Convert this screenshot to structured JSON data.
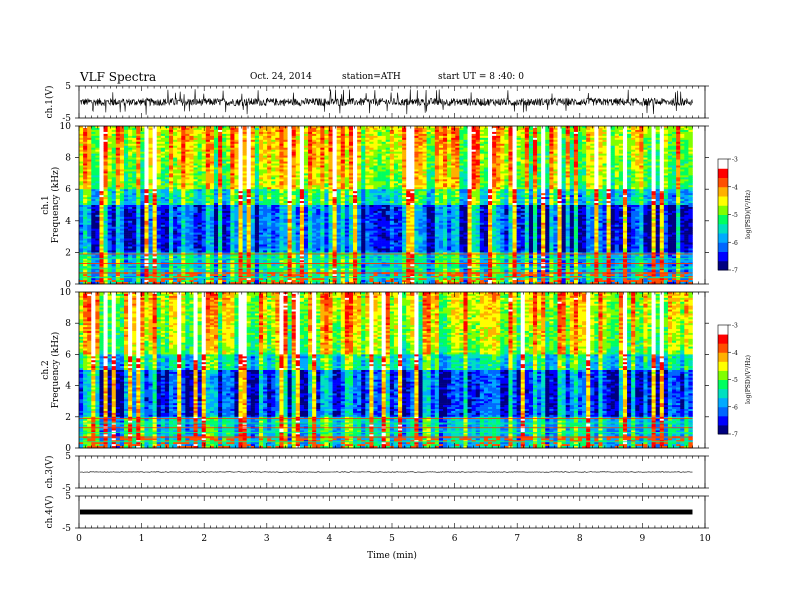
{
  "header": {
    "title": "VLF Spectra",
    "date": "Oct. 24, 2014",
    "station": "station=ATH",
    "start": "start UT = 8 :40: 0"
  },
  "chart_data": [
    {
      "type": "line",
      "panel": "ch1-waveform",
      "ylabel": "ch.1(V)",
      "ylim": [
        -5,
        5
      ],
      "yticks": [
        "5",
        "-5"
      ],
      "xlim": [
        0,
        10
      ],
      "x_end": 9.8,
      "baseline": 0,
      "amplitude_typical": 1.2,
      "amplitude_peak": 4.0,
      "color": "#000000"
    },
    {
      "type": "heatmap",
      "panel": "ch1-spectrogram",
      "ylabel": "ch.1\nFrequency (kHz)",
      "ylabel_line1": "ch.1",
      "ylabel_line2": "Frequency (kHz)",
      "ylim": [
        0,
        10
      ],
      "yticks": [
        "0",
        "2",
        "4",
        "6",
        "8",
        "10"
      ],
      "xlim": [
        0,
        10
      ],
      "x_end": 9.8,
      "colorbar": {
        "label": "log(PSD)(V²/Hz)",
        "range": [
          -7,
          -3
        ],
        "ticks": [
          "-3",
          "-4",
          "-5",
          "-6",
          "-7"
        ],
        "colors": [
          "#000080",
          "#0000ff",
          "#00aaff",
          "#00ff80",
          "#ffff00",
          "#ff8000",
          "#ff0000",
          "#ffffff"
        ]
      }
    },
    {
      "type": "heatmap",
      "panel": "ch2-spectrogram",
      "ylabel": "ch.2\nFrequency (kHz)",
      "ylabel_line1": "ch.2",
      "ylabel_line2": "Frequency (kHz)",
      "ylim": [
        0,
        10
      ],
      "yticks": [
        "0",
        "2",
        "4",
        "6",
        "8",
        "10"
      ],
      "xlim": [
        0,
        10
      ],
      "x_end": 9.8,
      "colorbar": {
        "label": "log(PSD)(V²/Hz)",
        "range": [
          -7,
          -3
        ],
        "ticks": [
          "-3",
          "-4",
          "-5",
          "-6",
          "-7"
        ]
      }
    },
    {
      "type": "line",
      "panel": "ch3-waveform",
      "ylabel": "ch.3(V)",
      "ylim": [
        -5,
        5
      ],
      "yticks": [
        "5",
        "-5"
      ],
      "xlim": [
        0,
        10
      ],
      "x_end": 9.8,
      "baseline": 0,
      "amplitude_typical": 0.1
    },
    {
      "type": "line",
      "panel": "ch4-waveform",
      "ylabel": "ch.4(V)",
      "ylim": [
        -5,
        5
      ],
      "yticks": [
        "5",
        "-5"
      ],
      "xlim": [
        0,
        10
      ],
      "x_end": 9.8,
      "baseline": 0,
      "amplitude_typical": 0.3,
      "xlabel": "Time (min)",
      "xticks": [
        "0",
        "1",
        "2",
        "3",
        "4",
        "5",
        "6",
        "7",
        "8",
        "9",
        "10"
      ]
    }
  ]
}
